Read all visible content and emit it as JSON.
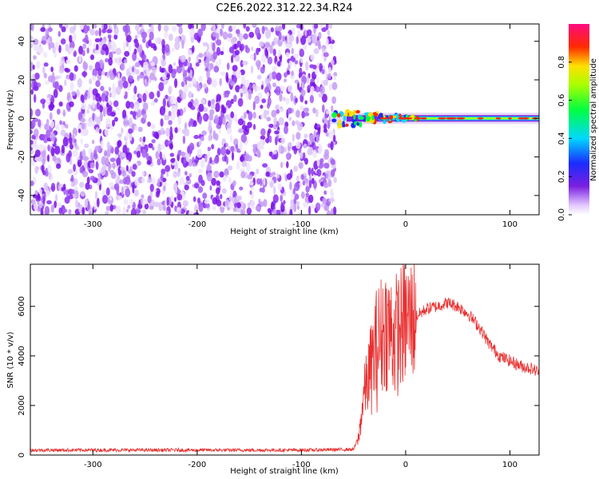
{
  "title": "C2E6.2022.312.22.34.R24",
  "chart_data": [
    {
      "type": "heatmap",
      "xlabel": "Height of straight line (km)",
      "ylabel": "Frequency (Hz)",
      "xlim": [
        -360,
        128
      ],
      "ylim": [
        -50,
        49
      ],
      "xticks": [
        -300,
        -200,
        -100,
        0,
        100
      ],
      "yticks": [
        -40,
        -20,
        0,
        20,
        40
      ],
      "colorbar": {
        "label": "Normalized spectral amplitude",
        "range": [
          0.0,
          1.0
        ],
        "ticks": [
          0.0,
          0.2,
          0.4,
          0.6,
          0.8
        ],
        "colormap": "rainbow (white-purple-blue-cyan-green-yellow-red-pink)"
      },
      "description_points": {
        "noise_region_x": [
          -360,
          -72
        ],
        "signal_start_x": -72,
        "signal_center_frequency": 0
      },
      "grid": false
    },
    {
      "type": "line",
      "xlabel": "Height of straight line (km)",
      "ylabel": "SNR (10 * v/v)",
      "xlim": [
        -360,
        128
      ],
      "ylim": [
        0,
        7700
      ],
      "xticks": [
        -300,
        -200,
        -100,
        0,
        100
      ],
      "yticks": [
        0,
        2000,
        4000,
        6000
      ],
      "color": "#e83030",
      "series": [
        {
          "x": [
            -360,
            -300,
            -200,
            -100,
            -50,
            -45,
            -40,
            -30,
            -20,
            -10,
            0,
            10,
            20,
            30,
            40,
            50,
            60,
            70,
            80,
            90,
            100,
            110,
            120,
            128
          ],
          "y": [
            200,
            200,
            200,
            200,
            230,
            700,
            2500,
            4000,
            5200,
            4800,
            5400,
            5600,
            5900,
            6000,
            6150,
            6000,
            5700,
            5200,
            4500,
            4000,
            3800,
            3600,
            3500,
            3350
          ]
        }
      ],
      "grid": false
    }
  ]
}
